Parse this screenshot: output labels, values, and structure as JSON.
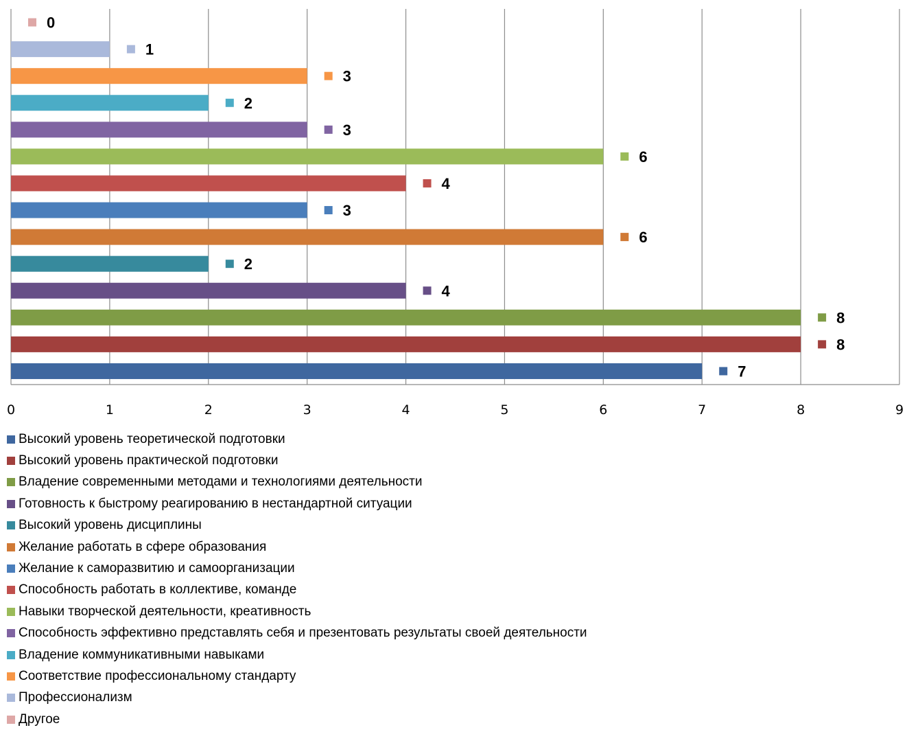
{
  "chart_data": {
    "type": "bar",
    "orientation": "horizontal",
    "xlim": [
      0,
      9
    ],
    "x_ticks": [
      "0",
      "1",
      "2",
      "3",
      "4",
      "5",
      "6",
      "7",
      "8",
      "9"
    ],
    "grid": true,
    "legend_position": "bottom",
    "categories": [
      "Высокий уровень теоретической подготовки",
      "Высокий уровень практической подготовки",
      "Владение современными методами и технологиями деятельности",
      "Готовность к быстрому реагированию в нестандартной ситуации",
      "Высокий уровень дисциплины",
      "Желание работать в сфере образования",
      "Желание к саморазвитию и самоорганизации",
      "Способность работать в коллективе, команде",
      "Навыки творческой деятельности, креативность",
      "Способность эффективно представлять себя и презентовать результаты своей деятельности",
      "Владение коммуникативными навыками",
      "Соответствие профессиональному стандарту",
      "Профессионализм",
      "Другое"
    ],
    "values": [
      7,
      8,
      8,
      4,
      2,
      6,
      3,
      4,
      6,
      3,
      2,
      3,
      1,
      0
    ],
    "data_labels": [
      "7",
      "8",
      "8",
      "4",
      "2",
      "6",
      "3",
      "4",
      "6",
      "3",
      "2",
      "3",
      "1",
      "0"
    ],
    "colors": [
      "#3f679f",
      "#a1403d",
      "#7f9c46",
      "#674f87",
      "#378a9d",
      "#d07a36",
      "#4a7ebb",
      "#c0504d",
      "#9bbb59",
      "#8064a2",
      "#4bacc6",
      "#f79646",
      "#aab9db",
      "#dea7a6"
    ]
  }
}
